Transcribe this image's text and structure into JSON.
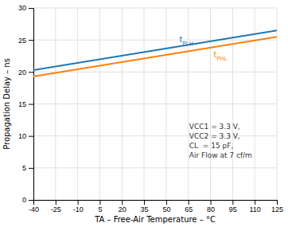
{
  "chart_data": {
    "type": "line",
    "x": [
      -40,
      125
    ],
    "series": [
      {
        "name": "tPLH",
        "values": [
          20.3,
          26.5
        ]
      },
      {
        "name": "tPHL",
        "values": [
          19.3,
          25.5
        ]
      }
    ],
    "xlim": [
      -40,
      125
    ],
    "xticks": [
      -40,
      -25,
      -10,
      5,
      20,
      35,
      50,
      65,
      80,
      95,
      110,
      125
    ],
    "ylim": [
      0,
      30
    ],
    "yticks": [
      0,
      5,
      10,
      15,
      20,
      25,
      30
    ],
    "x_label": "TA – Free-Air Temperature – °C",
    "y_label": "Propagation Delay – ns",
    "annotations": [
      "VCC1 = 3.3 V,",
      "VCC2 = 3.3 V,",
      "CL  = 15 pF,",
      "Air Flow at 7 cf/m"
    ],
    "grid": true
  }
}
